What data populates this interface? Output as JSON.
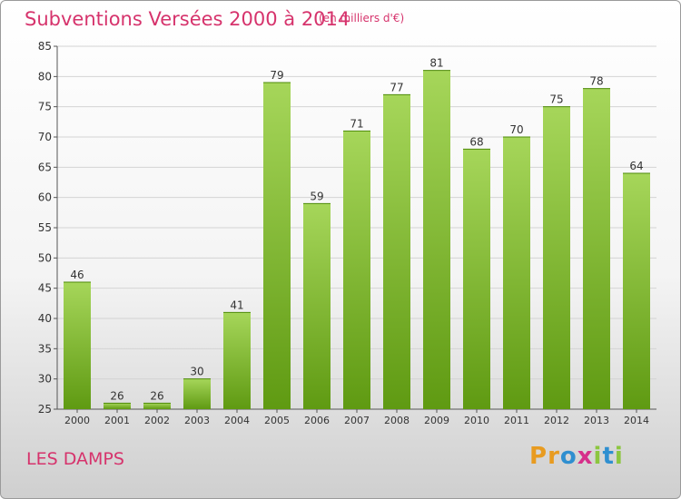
{
  "header": {
    "title": "Subventions Versées 2000 à 2014",
    "subtitle": "(en milliers d'€)"
  },
  "footer": {
    "commune": "LES DAMPS",
    "brand": [
      "P",
      "r",
      "o",
      "x",
      "i",
      "t",
      "i"
    ]
  },
  "colors": {
    "title": "#d6336c",
    "bar_top": "#a6d65a",
    "bar_bottom": "#5f9a12",
    "brand": [
      "#e89b20",
      "#e89b20",
      "#2f8fd0",
      "#d62f8a",
      "#8cc63f",
      "#2f8fd0",
      "#8cc63f"
    ]
  },
  "chart_data": {
    "type": "bar",
    "title": "Subventions Versées 2000 à 2014",
    "ylabel": "en milliers d'€",
    "xlabel": "",
    "categories": [
      "2000",
      "2001",
      "2002",
      "2003",
      "2004",
      "2005",
      "2006",
      "2007",
      "2008",
      "2009",
      "2010",
      "2011",
      "2012",
      "2013",
      "2014"
    ],
    "values": [
      46,
      26,
      26,
      30,
      41,
      79,
      59,
      71,
      77,
      81,
      68,
      70,
      75,
      78,
      64
    ],
    "ylim": [
      25,
      85
    ],
    "yticks": [
      25,
      30,
      35,
      40,
      45,
      50,
      55,
      60,
      65,
      70,
      75,
      80,
      85
    ],
    "grid": true
  }
}
